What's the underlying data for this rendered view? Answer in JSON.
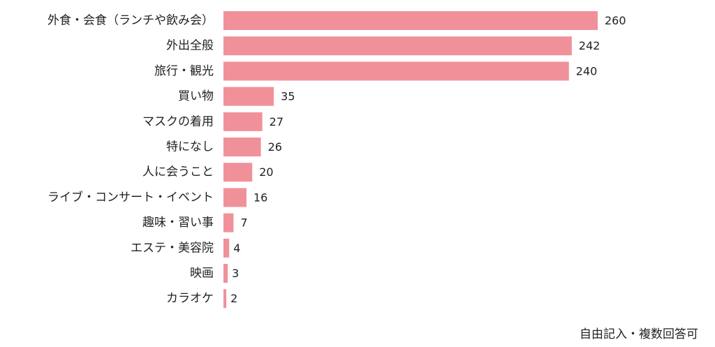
{
  "chart_data": {
    "type": "bar",
    "orientation": "horizontal",
    "categories": [
      "外食・会食（ランチや飲み会）",
      "外出全般",
      "旅行・観光",
      "買い物",
      "マスクの着用",
      "特になし",
      "人に会うこと",
      "ライブ・コンサート・イベント",
      "趣味・習い事",
      "エステ・美容院",
      "映画",
      "カラオケ"
    ],
    "values": [
      260,
      242,
      240,
      35,
      27,
      26,
      20,
      16,
      7,
      4,
      3,
      2
    ],
    "title": "",
    "xlabel": "",
    "ylabel": "",
    "xlim": [
      0,
      260
    ],
    "grid": false,
    "legend": "none",
    "bar_color": "#f0919a"
  },
  "note": "自由記入・複数回答可"
}
